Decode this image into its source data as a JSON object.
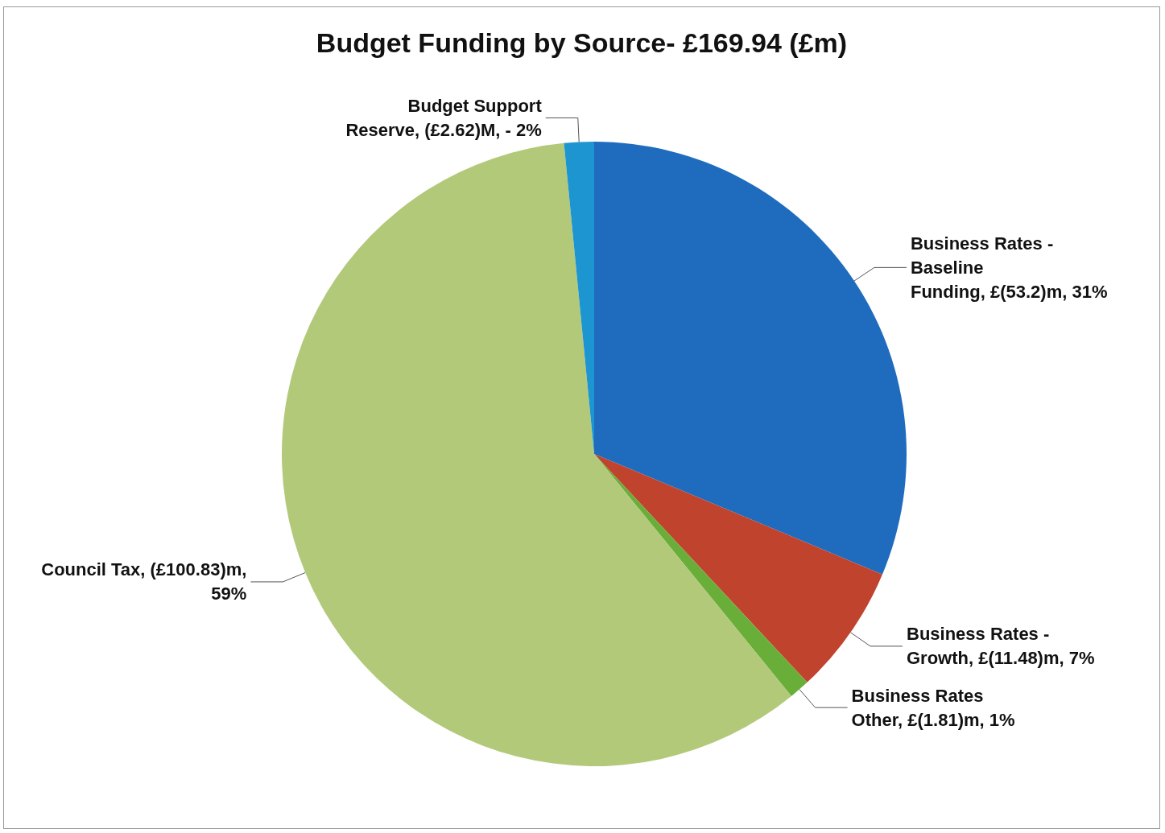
{
  "chart_data": {
    "type": "pie",
    "title": "Budget Funding by Source- £169.94 (£m)",
    "categories": [
      "Business Rates - Baseline Funding",
      "Business Rates - Growth",
      "Business Rates Other",
      "Council Tax",
      "Budget Support Reserve"
    ],
    "values": [
      53.2,
      11.48,
      1.81,
      100.83,
      2.62
    ],
    "value_labels": [
      "£(53.2)m, 31%",
      "£(11.48)m, 7%",
      "£(1.81)m, 1%",
      "(£100.83)m, 59%",
      "(£2.62)M, - 2%"
    ],
    "colors": [
      "#1f6cbf",
      "#c0432e",
      "#6aae3a",
      "#b3c97a",
      "#1c95d0"
    ],
    "legend": false
  }
}
